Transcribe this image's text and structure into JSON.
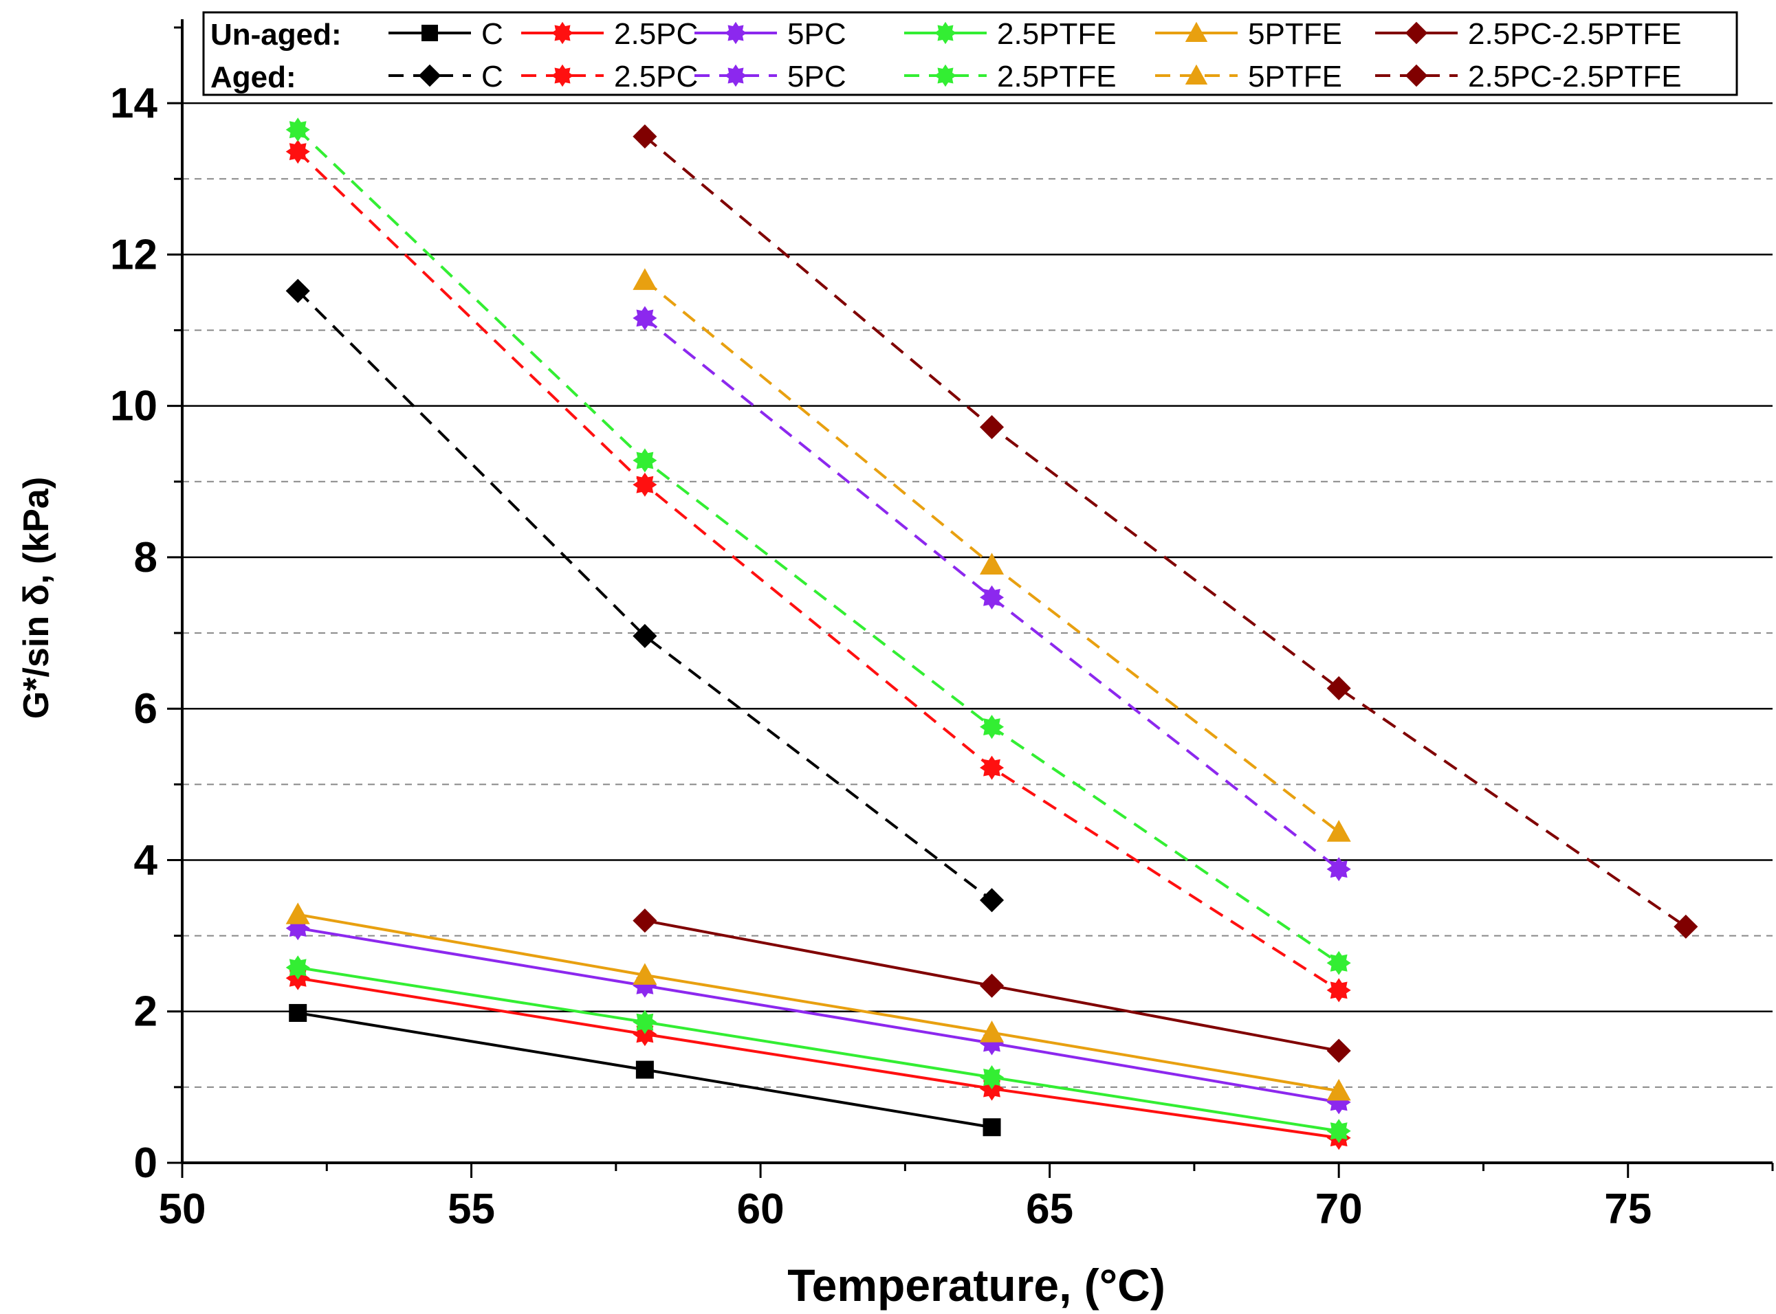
{
  "chart_data": {
    "type": "line",
    "title": "",
    "xlabel": "Temperature, (°C)",
    "ylabel": "G*/sin δ, (kPa)",
    "xlim": [
      50,
      77.5
    ],
    "ylim": [
      0,
      15
    ],
    "x_ticks": [
      50,
      55,
      60,
      65,
      70,
      75
    ],
    "y_ticks": [
      0,
      2,
      4,
      6,
      8,
      10,
      12,
      14
    ],
    "y_solid_gridlines": [
      2,
      4,
      6,
      8,
      10,
      12,
      14
    ],
    "y_dashed_gridlines": [
      1,
      3,
      5,
      7,
      9,
      11,
      13
    ],
    "legend": {
      "placement": "top",
      "unaged_label": "Un-aged:",
      "aged_label": "Aged:"
    },
    "series": [
      {
        "name": "C",
        "group": "Un-aged",
        "color": "#000000",
        "marker": "square",
        "dashed": false,
        "x": [
          52,
          58,
          64
        ],
        "y": [
          1.98,
          1.23,
          0.47
        ]
      },
      {
        "name": "2.5PC",
        "group": "Un-aged",
        "color": "#ff1010",
        "marker": "star",
        "dashed": false,
        "x": [
          52,
          58,
          64,
          70
        ],
        "y": [
          2.44,
          1.7,
          0.98,
          0.33
        ]
      },
      {
        "name": "5PC",
        "group": "Un-aged",
        "color": "#8c28ee",
        "marker": "star",
        "dashed": false,
        "x": [
          52,
          58,
          64,
          70
        ],
        "y": [
          3.1,
          2.34,
          1.58,
          0.8
        ]
      },
      {
        "name": "2.5PTFE",
        "group": "Un-aged",
        "color": "#33ee33",
        "marker": "star",
        "dashed": false,
        "x": [
          52,
          58,
          64,
          70
        ],
        "y": [
          2.58,
          1.86,
          1.13,
          0.42
        ]
      },
      {
        "name": "5PTFE",
        "group": "Un-aged",
        "color": "#e8a010",
        "marker": "triangle",
        "dashed": false,
        "x": [
          52,
          58,
          64,
          70
        ],
        "y": [
          3.28,
          2.48,
          1.72,
          0.95
        ]
      },
      {
        "name": "2.5PC-2.5PTFE",
        "group": "Un-aged",
        "color": "#800000",
        "marker": "diamond",
        "dashed": false,
        "x": [
          58,
          64,
          70
        ],
        "y": [
          3.2,
          2.34,
          1.48
        ]
      },
      {
        "name": "C",
        "group": "Aged",
        "color": "#000000",
        "marker": "diamond",
        "dashed": true,
        "x": [
          52,
          58,
          64
        ],
        "y": [
          11.52,
          6.96,
          3.47
        ]
      },
      {
        "name": "2.5PC",
        "group": "Aged",
        "color": "#ff1010",
        "marker": "star",
        "dashed": true,
        "x": [
          52,
          58,
          64,
          70
        ],
        "y": [
          13.36,
          8.96,
          5.22,
          2.28
        ]
      },
      {
        "name": "5PC",
        "group": "Aged",
        "color": "#8c28ee",
        "marker": "star",
        "dashed": true,
        "x": [
          58,
          64,
          70
        ],
        "y": [
          11.16,
          7.47,
          3.88
        ]
      },
      {
        "name": "2.5PTFE",
        "group": "Aged",
        "color": "#33ee33",
        "marker": "star",
        "dashed": true,
        "x": [
          52,
          58,
          64,
          70
        ],
        "y": [
          13.65,
          9.28,
          5.76,
          2.64
        ]
      },
      {
        "name": "5PTFE",
        "group": "Aged",
        "color": "#e8a010",
        "marker": "triangle",
        "dashed": true,
        "x": [
          58,
          64,
          70
        ],
        "y": [
          11.66,
          7.9,
          4.37
        ]
      },
      {
        "name": "2.5PC-2.5PTFE",
        "group": "Aged",
        "color": "#800000",
        "marker": "diamond",
        "dashed": true,
        "x": [
          58,
          64,
          70,
          76
        ],
        "y": [
          13.56,
          9.72,
          6.27,
          3.12
        ]
      }
    ]
  }
}
